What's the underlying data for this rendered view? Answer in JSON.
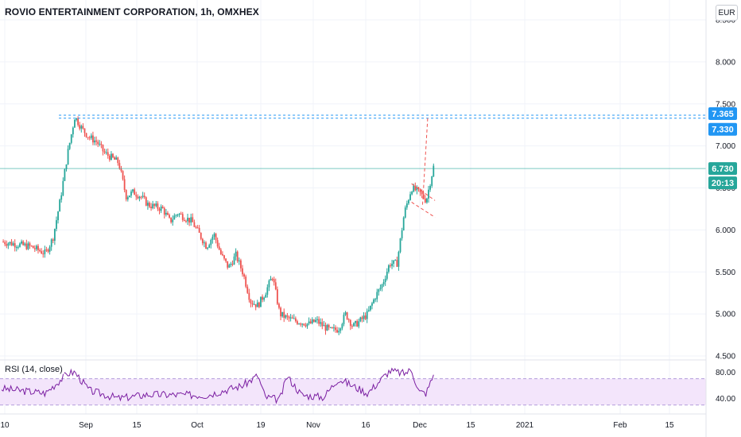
{
  "header": {
    "title": "ROVIO ENTERTAINMENT CORPORATION, 1h, OMXHEX",
    "currency": "EUR"
  },
  "rsi": {
    "label": "RSI (14, close)"
  },
  "colors": {
    "up": "#26a69a",
    "down": "#ef5350",
    "rsi": "#7b1fa2",
    "rsi_band": "#f3e5fb",
    "dashed_blue": "#2196f3",
    "dashed_red": "#ef5350",
    "tag_blue": "#2196f3",
    "tag_green": "#26a69a"
  },
  "chart_data": [
    {
      "type": "candlestick",
      "title": "ROVIO ENTERTAINMENT CORPORATION, 1h, OMXHEX",
      "y_ticks": [
        "4.500",
        "5.000",
        "5.500",
        "6.000",
        "6.500",
        "7.000",
        "7.500",
        "8.000",
        "8.500"
      ],
      "y_tick_values": [
        4.5,
        5.0,
        5.5,
        6.0,
        6.5,
        7.0,
        7.5,
        8.0,
        8.5
      ],
      "ylim": [
        4.5,
        8.5
      ],
      "x_ticks": [
        "10",
        "Sep",
        "15",
        "Oct",
        "19",
        "Nov",
        "16",
        "Dec",
        "15",
        "2021",
        "Feb",
        "15"
      ],
      "price_path": [
        [
          0,
          5.86
        ],
        [
          4,
          5.8
        ],
        [
          6,
          5.72
        ],
        [
          7,
          5.9
        ],
        [
          8,
          6.35
        ],
        [
          9,
          6.9
        ],
        [
          10,
          7.35
        ],
        [
          11,
          7.2
        ],
        [
          12,
          7.1
        ],
        [
          13,
          7.05
        ],
        [
          14,
          6.92
        ],
        [
          16,
          6.8
        ],
        [
          17,
          6.4
        ],
        [
          18,
          6.45
        ],
        [
          19,
          6.4
        ],
        [
          20,
          6.3
        ],
        [
          22,
          6.25
        ],
        [
          23,
          6.1
        ],
        [
          24,
          6.2
        ],
        [
          26,
          6.1
        ],
        [
          27,
          5.95
        ],
        [
          28,
          5.8
        ],
        [
          29,
          5.95
        ],
        [
          30,
          5.7
        ],
        [
          31,
          5.55
        ],
        [
          32,
          5.7
        ],
        [
          33,
          5.48
        ],
        [
          34,
          5.15
        ],
        [
          35,
          5.1
        ],
        [
          36,
          5.25
        ],
        [
          37,
          5.45
        ],
        [
          38,
          5.0
        ],
        [
          39,
          4.95
        ],
        [
          40,
          4.92
        ],
        [
          41,
          4.9
        ],
        [
          42,
          4.88
        ],
        [
          43,
          4.92
        ],
        [
          44,
          4.85
        ],
        [
          45,
          4.8
        ],
        [
          46,
          4.82
        ],
        [
          47,
          5.0
        ],
        [
          48,
          4.85
        ],
        [
          49,
          4.92
        ],
        [
          50,
          5.0
        ],
        [
          51,
          5.2
        ],
        [
          52,
          5.35
        ],
        [
          53,
          5.6
        ],
        [
          54,
          5.6
        ],
        [
          55,
          6.2
        ],
        [
          56,
          6.5
        ],
        [
          57,
          6.45
        ],
        [
          58,
          6.35
        ],
        [
          59,
          6.75
        ]
      ],
      "current_price": 6.73,
      "current_tag": "6.730",
      "countdown_tag": "20:13",
      "resistance_levels": [
        {
          "value": 7.365,
          "tag": "7.365"
        },
        {
          "value": 7.33,
          "tag": "7.330"
        }
      ],
      "annotations": [
        "flag pattern (dashed red trendlines)",
        "projected target (dashed red)"
      ]
    },
    {
      "type": "line",
      "title": "RSI (14, close)",
      "y_ticks": [
        "40.00",
        "80.00"
      ],
      "y_tick_values": [
        40,
        80
      ],
      "ylim": [
        20,
        95
      ],
      "band": [
        30,
        70
      ],
      "rsi_path": [
        [
          0,
          55
        ],
        [
          6,
          48
        ],
        [
          9,
          78
        ],
        [
          10,
          80
        ],
        [
          12,
          52
        ],
        [
          16,
          40
        ],
        [
          20,
          46
        ],
        [
          28,
          45
        ],
        [
          33,
          60
        ],
        [
          35,
          75
        ],
        [
          36,
          42
        ],
        [
          38,
          38
        ],
        [
          39,
          74
        ],
        [
          41,
          45
        ],
        [
          44,
          42
        ],
        [
          46,
          70
        ],
        [
          50,
          48
        ],
        [
          53,
          82
        ],
        [
          55,
          78
        ],
        [
          56,
          84
        ],
        [
          57,
          50
        ],
        [
          58,
          48
        ],
        [
          59,
          76
        ]
      ]
    }
  ]
}
